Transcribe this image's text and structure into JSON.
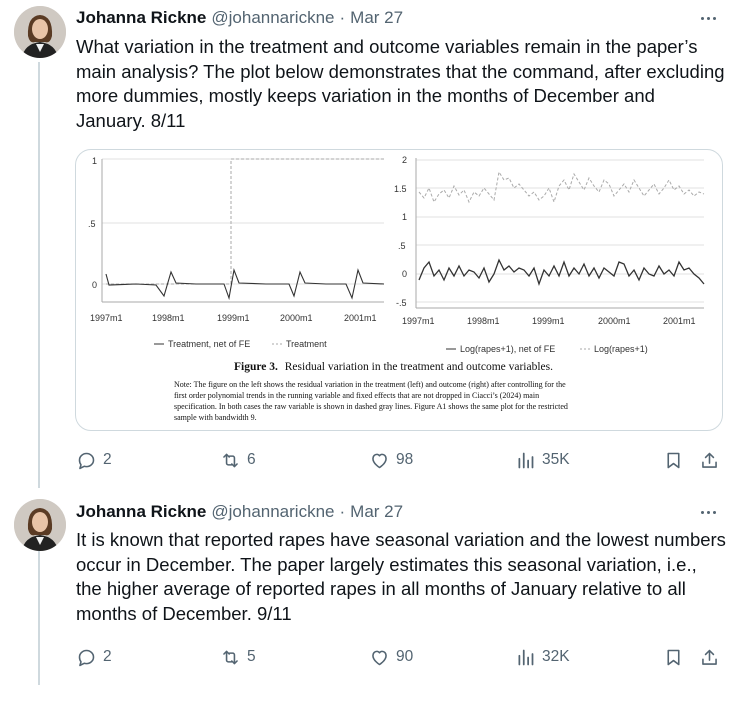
{
  "tweets": [
    {
      "author": {
        "name": "Johanna Rickne",
        "handle": "@johannarickne",
        "date": "Mar 27"
      },
      "text": "What variation in the treatment and outcome variables remain in the paper’s main analysis? The plot below demonstrates that the command, after excluding more dummies, mostly keeps variation in the months of December and January. 8/11",
      "stats": {
        "replies": "2",
        "reposts": "6",
        "likes": "98",
        "views": "35K"
      },
      "figure": {
        "left_panel": {
          "yticks": [
            "1",
            ".5",
            "0"
          ],
          "xticks": [
            "1997m1",
            "1998m1",
            "1999m1",
            "2000m1",
            "2001m1"
          ],
          "legend": [
            "Treatment, net of FE",
            "Treatment"
          ]
        },
        "right_panel": {
          "yticks": [
            "2",
            "1.5",
            "1",
            ".5",
            "0",
            "-.5"
          ],
          "xticks": [
            "1997m1",
            "1998m1",
            "1999m1",
            "2000m1",
            "2001m1"
          ],
          "legend": [
            "Log(rapes+1), net of FE",
            "Log(rapes+1)"
          ]
        },
        "caption_bold": "Figure 3.",
        "caption_text": "Residual variation in the treatment and outcome variables.",
        "note_lines": [
          "Note: The figure on the left shows the residual variation in the treatment (left) and outcome (right) after controlling for the",
          "first order polynomial trends in the running variable and fixed effects that are not dropped in Ciacci’s (2024) main",
          "specification. In both cases the raw variable is shown in dashed gray lines. Figure A1 shows the same plot for the restricted",
          "sample with bandwidth 9."
        ]
      }
    },
    {
      "author": {
        "name": "Johanna Rickne",
        "handle": "@johannarickne",
        "date": "Mar 27"
      },
      "text": "It is known that reported rapes have seasonal variation and the lowest numbers occur in December. The paper largely estimates this seasonal variation, i.e., the higher average of reported rapes in all months of January relative to all months of December. 9/11",
      "stats": {
        "replies": "2",
        "reposts": "5",
        "likes": "90",
        "views": "32K"
      }
    }
  ],
  "colors": {
    "text": "#0f1419",
    "muted": "#536471",
    "border": "#cfd9de"
  },
  "icons": [
    "reply-icon",
    "repost-icon",
    "like-icon",
    "views-icon",
    "bookmark-icon",
    "share-icon",
    "more-icon"
  ]
}
